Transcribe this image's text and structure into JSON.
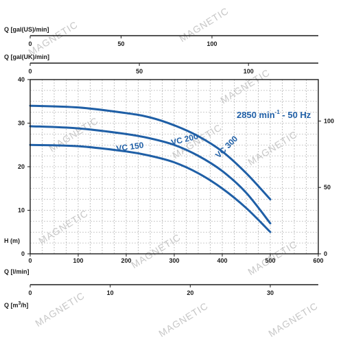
{
  "chart_data": {
    "type": "line",
    "x": {
      "label": "Q [l/min]",
      "lim": [
        0,
        600
      ],
      "ticks": [
        0,
        100,
        200,
        300,
        400,
        500,
        600
      ]
    },
    "y": {
      "label": "H (m)",
      "lim": [
        0,
        40
      ],
      "ticks": [
        0,
        10,
        20,
        30,
        40
      ]
    },
    "y_right": {
      "ticks": [
        0,
        50,
        100
      ]
    },
    "top_axes": [
      {
        "label": "Q [gal(US)/min]",
        "ticks": [
          0,
          50,
          100
        ]
      },
      {
        "label": "Q [gal(UK)/min]",
        "ticks": [
          0,
          50,
          100
        ]
      }
    ],
    "bottom_axis2": {
      "label_prefix": "Q [m",
      "label_sup": "3",
      "label_suffix": "/h]",
      "ticks": [
        0,
        10,
        20,
        30
      ]
    },
    "annotation": {
      "text": "2850 min",
      "sup": "-1",
      "suffix": " - 50 Hz"
    },
    "series": [
      {
        "name": "VC 150",
        "x": [
          0,
          100,
          200,
          250,
          300,
          350,
          400,
          450,
          500
        ],
        "y": [
          25,
          24.7,
          23.5,
          22.5,
          21,
          18.5,
          15,
          10.5,
          5
        ]
      },
      {
        "name": "VC 200",
        "x": [
          0,
          100,
          200,
          250,
          300,
          350,
          400,
          450,
          500
        ],
        "y": [
          29.3,
          28.8,
          27.5,
          26.5,
          25,
          22.5,
          19,
          14,
          7
        ]
      },
      {
        "name": "VC 300",
        "x": [
          0,
          100,
          200,
          250,
          300,
          350,
          400,
          450,
          500
        ],
        "y": [
          34,
          33.6,
          32.3,
          31.3,
          29.5,
          27,
          23.5,
          18.5,
          12.5
        ]
      }
    ],
    "grid": true,
    "colors": {
      "curve": "#1f5fa6",
      "grid": "#9a9a9a",
      "axis": "#1a1a1a",
      "watermark": "#c7c7c7"
    }
  },
  "watermark": "MAGNETIC"
}
